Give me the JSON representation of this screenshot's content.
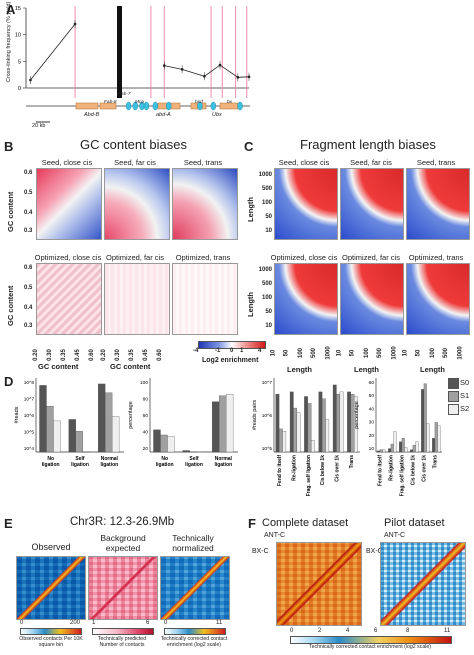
{
  "panels": {
    "A": {
      "label": "A",
      "ylabel": "Cross-linking frequency (% yield)",
      "yticks": [
        "15",
        "10",
        "5",
        "0"
      ],
      "scale_bar": "20 kb",
      "genes": [
        "Abd-B",
        "abd-A",
        "Ubx"
      ],
      "elements": [
        "Fab-8",
        "Fab-7",
        "Mcp",
        "bxd",
        "bx"
      ],
      "chart_data": {
        "type": "line",
        "ylim": [
          0,
          15
        ],
        "series": [
          {
            "values": [
              {
                "x": 0.02,
                "y": 1.5
              },
              {
                "x": 0.22,
                "y": 12.0
              }
            ]
          },
          {
            "values": [
              {
                "x": 0.62,
                "y": 4.2
              },
              {
                "x": 0.7,
                "y": 3.5
              },
              {
                "x": 0.8,
                "y": 2.2
              },
              {
                "x": 0.87,
                "y": 4.3
              },
              {
                "x": 0.95,
                "y": 2.0
              },
              {
                "x": 1.0,
                "y": 2.1
              }
            ]
          }
        ]
      }
    },
    "B": {
      "label": "B",
      "title": "GC content biases",
      "ylabel": "GC content",
      "xlabel": "GC content",
      "yticks": [
        "0.6",
        "0.5",
        "0.4",
        "0.3"
      ],
      "xticks": [
        "0.20",
        "0.30",
        "0.35",
        "0.45",
        "0.60"
      ],
      "subplots": [
        "Seed, close cis",
        "Seed, far cis",
        "Seed, trans",
        "Optimized, close cis",
        "Optimized, far cis",
        "Optimized, trans"
      ]
    },
    "C": {
      "label": "C",
      "title": "Fragment length biases",
      "ylabel": "Length",
      "xlabel": "Length",
      "yticks": [
        "1000",
        "500",
        "100",
        "50",
        "10"
      ],
      "xticks": [
        "10",
        "50",
        "100",
        "500",
        "1000"
      ],
      "subplots": [
        "Seed, close cis",
        "Seed, far cis",
        "Seed, trans",
        "Optimized, close cis",
        "Optimized, far cis",
        "Optimized, trans"
      ],
      "colorbar": {
        "ticks": [
          "-4",
          "-1",
          "0",
          "1",
          "4"
        ],
        "label": "Log2 enrichment"
      }
    },
    "D": {
      "label": "D",
      "legend": [
        {
          "name": "S0",
          "color": "#555555"
        },
        {
          "name": "S1",
          "color": "#a0a0a0"
        },
        {
          "name": "S2",
          "color": "#efefef"
        }
      ],
      "chart_data": [
        {
          "type": "bar",
          "ylabel": "#reads",
          "yticks": [
            "10^8",
            "10^7",
            "10^6",
            "10^5",
            "10^4"
          ],
          "categories": [
            "No ligation",
            "Self ligation",
            "Normal ligation"
          ],
          "series": [
            {
              "name": "S0",
              "values": [
                8.0,
                5.7,
                8.1
              ]
            },
            {
              "name": "S1",
              "values": [
                6.6,
                4.9,
                7.5
              ]
            },
            {
              "name": "S2",
              "values": [
                5.6,
                3.2,
                5.9
              ]
            }
          ]
        },
        {
          "type": "bar",
          "ylabel": "percentage",
          "yticks": [
            "100",
            "80",
            "60",
            "40",
            "20"
          ],
          "categories": [
            "No ligation",
            "Self ligation",
            "Normal ligation"
          ],
          "series": [
            {
              "name": "S0",
              "values": [
                30,
                2,
                68
              ]
            },
            {
              "name": "S1",
              "values": [
                23,
                0.5,
                76
              ]
            },
            {
              "name": "S2",
              "values": [
                21,
                0.2,
                78
              ]
            }
          ]
        },
        {
          "type": "bar",
          "ylabel": "#reads pairs",
          "yticks": [
            "10^7",
            "10^6",
            "10^5"
          ],
          "categories": [
            "Fend to itself",
            "Re-ligation",
            "Frag. self ligation",
            "Cis below 1k",
            "Cis over 1k",
            "Trans"
          ],
          "series": [
            {
              "name": "S0",
              "values": [
                6.5,
                6.6,
                6.4,
                6.6,
                6.9,
                6.6
              ]
            },
            {
              "name": "S1",
              "values": [
                5.0,
                5.9,
                6.1,
                6.3,
                6.5,
                6.5
              ]
            },
            {
              "name": "S2",
              "values": [
                4.9,
                5.7,
                4.5,
                5.4,
                6.6,
                6.4
              ]
            }
          ]
        },
        {
          "type": "bar",
          "ylabel": "percentage",
          "yticks": [
            "60",
            "50",
            "40",
            "30",
            "20",
            "10"
          ],
          "categories": [
            "Fend to itself",
            "Re-ligation",
            "Frag. self ligation",
            "Cis below 1k",
            "Cis over 1k",
            "Trans"
          ],
          "series": [
            {
              "name": "S0",
              "values": [
                1,
                3,
                9,
                2,
                55,
                12
              ]
            },
            {
              "name": "S1",
              "values": [
                2,
                7,
                12,
                6,
                60,
                26
              ]
            },
            {
              "name": "S2",
              "values": [
                2,
                18,
                4,
                9,
                25,
                23
              ]
            }
          ]
        }
      ]
    },
    "E": {
      "label": "E",
      "title": "Chr3R: 12.3-26.9Mb",
      "subplots": [
        "Observed",
        "Background expected",
        "Technically normalized"
      ],
      "colorbars": [
        {
          "ticks": [
            "0",
            "200"
          ],
          "label": "Observed contacts Per 10K square bin"
        },
        {
          "ticks": [
            "1",
            "6"
          ],
          "label": "Technically predicted Number of contacts"
        },
        {
          "ticks": [
            "0",
            "11"
          ],
          "label": "Technically corrected contact enrichment (log2 scale)"
        }
      ]
    },
    "F": {
      "label": "F",
      "subplots": [
        "Complete dataset",
        "Pilot dataset"
      ],
      "annotations": [
        "ANT-C",
        "BX-C"
      ],
      "colorbar": {
        "ticks": [
          "0",
          "2",
          "4",
          "6",
          "8",
          "11"
        ],
        "label": "Technically corrected contact enrichment (log2 scale)"
      }
    }
  }
}
